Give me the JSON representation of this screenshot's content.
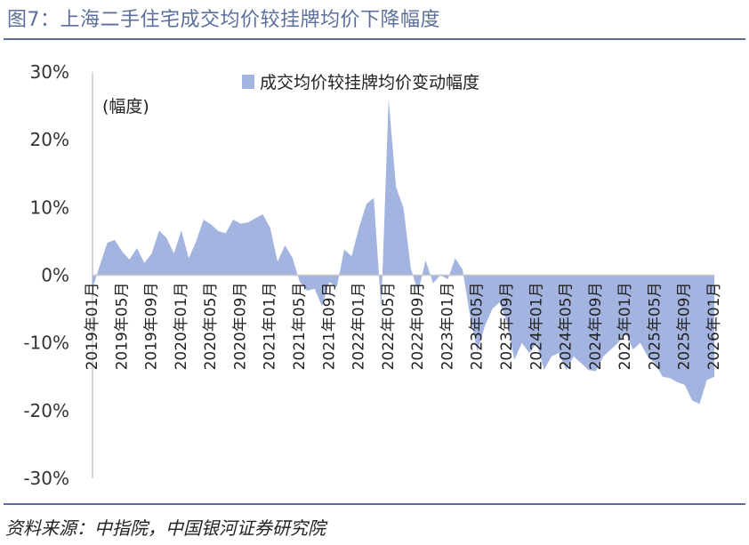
{
  "header": {
    "title": "图7：上海二手住宅成交均价较挂牌均价下降幅度"
  },
  "footer": {
    "source": "资料来源：中指院，中国银河证券研究院"
  },
  "colors": {
    "area": "#a3b4e1",
    "accent": "#5b6f9c",
    "axis": "#c8c8c8"
  },
  "chart_data": {
    "type": "area",
    "unit_label": "(幅度)",
    "ylim": [
      -30,
      30
    ],
    "y_ticks": [
      "30%",
      "20%",
      "10%",
      "0%",
      "-10%",
      "-20%",
      "-30%"
    ],
    "y_tick_values": [
      30,
      20,
      10,
      0,
      -10,
      -20,
      -30
    ],
    "x_ticks": [
      "2019年01月",
      "2019年05月",
      "2019年09月",
      "2020年01月",
      "2020年05月",
      "2020年09月",
      "2021年01月",
      "2021年05月",
      "2021年09月",
      "2022年01月",
      "2022年05月",
      "2022年09月",
      "2023年01月",
      "2023年05月",
      "2023年09月",
      "2024年01月",
      "2024年05月",
      "2024年09月",
      "2025年01月",
      "2025年05月",
      "2025年09月",
      "2026年01月"
    ],
    "grid": false,
    "legend_position": "top-center",
    "series": [
      {
        "name": "成交均价较挂牌均价变动幅度",
        "x": [
          "2019-01",
          "2019-02",
          "2019-03",
          "2019-04",
          "2019-05",
          "2019-06",
          "2019-07",
          "2019-08",
          "2019-09",
          "2019-10",
          "2019-11",
          "2019-12",
          "2020-01",
          "2020-02",
          "2020-03",
          "2020-04",
          "2020-05",
          "2020-06",
          "2020-07",
          "2020-08",
          "2020-09",
          "2020-10",
          "2020-11",
          "2020-12",
          "2021-01",
          "2021-02",
          "2021-03",
          "2021-04",
          "2021-05",
          "2021-06",
          "2021-07",
          "2021-08",
          "2021-09",
          "2021-10",
          "2021-11",
          "2021-12",
          "2022-01",
          "2022-02",
          "2022-03",
          "2022-04",
          "2022-05",
          "2022-06",
          "2022-07",
          "2022-08",
          "2022-09",
          "2022-10",
          "2022-11",
          "2022-12",
          "2023-01",
          "2023-02",
          "2023-03",
          "2023-04",
          "2023-05",
          "2023-06",
          "2023-07",
          "2023-08",
          "2023-09",
          "2023-10",
          "2023-11",
          "2023-12",
          "2024-01",
          "2024-02",
          "2024-03",
          "2024-04",
          "2024-05",
          "2024-06",
          "2024-07",
          "2024-08",
          "2024-09",
          "2024-10",
          "2024-11",
          "2024-12",
          "2025-01",
          "2025-02",
          "2025-03",
          "2025-04",
          "2025-05",
          "2025-06",
          "2025-07",
          "2025-08",
          "2025-09",
          "2025-10",
          "2025-11",
          "2025-12",
          "2026-01"
        ],
        "values": [
          -2,
          1.5,
          4.8,
          5.2,
          3.5,
          2.3,
          4,
          1.8,
          3.2,
          6.6,
          5.5,
          3.2,
          6.6,
          2.5,
          5,
          8.2,
          7.5,
          6.5,
          6.2,
          8.2,
          7.6,
          7.8,
          8.4,
          9,
          7,
          2,
          4.4,
          2.6,
          -1,
          -2.3,
          -2,
          -4.6,
          -1,
          -1.8,
          3.8,
          2.8,
          7,
          10.5,
          11.4,
          -5,
          26,
          13,
          10,
          1,
          -2.5,
          2.2,
          -1.2,
          0,
          -0.6,
          2.5,
          0.8,
          -6,
          -11.3,
          -7.5,
          -5,
          -4,
          -7,
          -12.5,
          -10,
          -11.5,
          -10,
          -14,
          -12,
          -11.5,
          -14,
          -12,
          -13,
          -14,
          -14.2,
          -12,
          -11,
          -10,
          -8.5,
          -11,
          -10,
          -12,
          -13,
          -15,
          -15.2,
          -15.8,
          -16.2,
          -18.5,
          -19,
          -15.5,
          -15
        ]
      }
    ]
  }
}
